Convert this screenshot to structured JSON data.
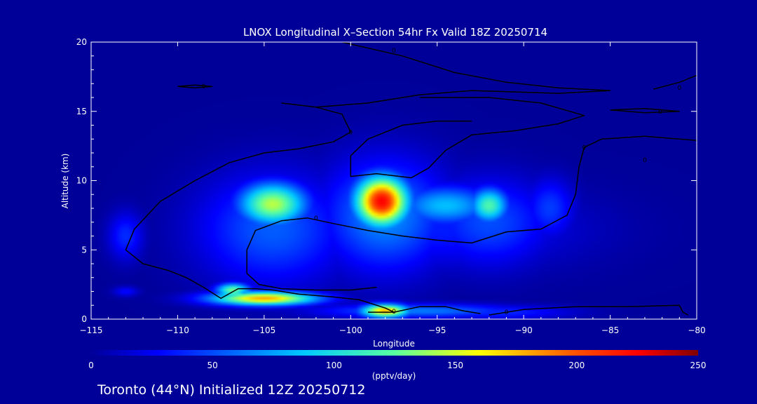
{
  "chart_data": {
    "type": "heatmap",
    "title": "LNOX Longitudinal X–Section 54hr  Fx Valid 18Z 20250714",
    "xlabel": "Longitude",
    "ylabel": "Altitude (km)",
    "xlim": [
      -115,
      -80
    ],
    "ylim": [
      0,
      20
    ],
    "x_ticks": [
      -115,
      -110,
      -105,
      -100,
      -95,
      -90,
      -85,
      -80
    ],
    "x_tick_labels": [
      "−115",
      "−110",
      "−105",
      "−100",
      "−95",
      "−90",
      "−85",
      "−80"
    ],
    "y_ticks": [
      0,
      5,
      10,
      15,
      20
    ],
    "background_color": "#000099",
    "colorbar": {
      "label": "(pptv/day)",
      "range": [
        0,
        250
      ],
      "ticks": [
        0,
        50,
        100,
        150,
        200,
        250
      ],
      "colormap": "jet"
    },
    "field": [
      {
        "lon": -113.0,
        "alt": 6.0,
        "sx": 0.7,
        "sy": 1.2,
        "value": 40
      },
      {
        "lon": -104.5,
        "alt": 8.3,
        "sx": 1.4,
        "sy": 1.1,
        "value": 145
      },
      {
        "lon": -104.5,
        "alt": 6.5,
        "sx": 3.0,
        "sy": 2.8,
        "value": 55
      },
      {
        "lon": -98.2,
        "alt": 8.5,
        "sx": 1.1,
        "sy": 1.3,
        "value": 225
      },
      {
        "lon": -98.0,
        "alt": 7.5,
        "sx": 2.5,
        "sy": 2.8,
        "value": 70
      },
      {
        "lon": -94.5,
        "alt": 8.2,
        "sx": 2.0,
        "sy": 1.0,
        "value": 85
      },
      {
        "lon": -92.0,
        "alt": 8.2,
        "sx": 0.8,
        "sy": 0.9,
        "value": 120
      },
      {
        "lon": -92.0,
        "alt": 7.0,
        "sx": 2.5,
        "sy": 2.2,
        "value": 50
      },
      {
        "lon": -88.5,
        "alt": 8.0,
        "sx": 1.0,
        "sy": 1.5,
        "value": 45
      },
      {
        "lon": -95.0,
        "alt": 6.5,
        "sx": 5.5,
        "sy": 2.0,
        "value": 35
      },
      {
        "lon": -105.0,
        "alt": 1.5,
        "sx": 2.2,
        "sy": 0.35,
        "value": 180
      },
      {
        "lon": -106.8,
        "alt": 2.1,
        "sx": 0.7,
        "sy": 0.35,
        "value": 130
      },
      {
        "lon": -98.0,
        "alt": 0.6,
        "sx": 1.0,
        "sy": 0.35,
        "value": 180
      },
      {
        "lon": -96.0,
        "alt": 0.6,
        "sx": 4.0,
        "sy": 0.35,
        "value": 65
      },
      {
        "lon": -91.5,
        "alt": 0.5,
        "sx": 3.0,
        "sy": 0.35,
        "value": 40
      },
      {
        "lon": -113.0,
        "alt": 2.0,
        "sx": 0.5,
        "sy": 0.25,
        "value": 30
      }
    ],
    "contours": [
      {
        "label": "0",
        "label_at": [
          -97.5,
          19.4
        ],
        "points": [
          [
            -100.5,
            20.0
          ],
          [
            -97,
            19.0
          ],
          [
            -94,
            17.8
          ],
          [
            -91,
            17.1
          ],
          [
            -88,
            16.7
          ],
          [
            -85,
            16.5
          ],
          [
            -88,
            16.3
          ],
          [
            -93,
            16.5
          ],
          [
            -96,
            16.2
          ],
          [
            -99,
            15.6
          ],
          [
            -102,
            15.3
          ],
          [
            -104,
            15.6
          ]
        ]
      },
      {
        "label": "0",
        "label_at": [
          -100,
          13.5
        ],
        "points": [
          [
            -102,
            15.3
          ],
          [
            -100.5,
            14.8
          ],
          [
            -100,
            13.5
          ],
          [
            -101,
            12.8
          ],
          [
            -103,
            12.3
          ],
          [
            -105,
            12.0
          ],
          [
            -107,
            11.3
          ],
          [
            -109,
            10.0
          ],
          [
            -111,
            8.5
          ],
          [
            -112.5,
            6.5
          ],
          [
            -113,
            5.0
          ],
          [
            -112,
            4.0
          ],
          [
            -110.5,
            3.5
          ],
          [
            -109.5,
            3.0
          ],
          [
            -108.5,
            2.3
          ],
          [
            -107.5,
            1.5
          ],
          [
            -106.5,
            2.2
          ],
          [
            -105.5,
            2.2
          ],
          [
            -104.5,
            2.1
          ],
          [
            -103,
            1.8
          ],
          [
            -101,
            1.6
          ],
          [
            -99.5,
            1.4
          ],
          [
            -98,
            0.8
          ],
          [
            -97.5,
            0.5
          ],
          [
            -99,
            0.5
          ]
        ]
      },
      {
        "label": "0",
        "label_at": [
          -97.5,
          0.55
        ],
        "points": [
          [
            -97.5,
            0.5
          ],
          [
            -96,
            0.9
          ],
          [
            -94.5,
            0.9
          ],
          [
            -93.5,
            0.6
          ],
          [
            -92.5,
            0.4
          ]
        ]
      },
      {
        "label": "0",
        "label_at": [
          -83,
          11.5
        ],
        "points": [
          [
            -96,
            16.0
          ],
          [
            -92,
            16.0
          ],
          [
            -89,
            15.6
          ],
          [
            -86.5,
            14.7
          ],
          [
            -88,
            14.1
          ],
          [
            -90.5,
            13.6
          ],
          [
            -93,
            13.3
          ],
          [
            -94.5,
            12.2
          ],
          [
            -95.5,
            10.9
          ],
          [
            -96.5,
            10.2
          ],
          [
            -98.5,
            10.5
          ],
          [
            -100,
            10.3
          ],
          [
            -100,
            11.8
          ],
          [
            -99,
            13.0
          ],
          [
            -97,
            14.0
          ],
          [
            -95,
            14.3
          ],
          [
            -93,
            14.3
          ]
        ]
      },
      {
        "label": "0",
        "label_at": [
          -86.5,
          12.4
        ],
        "points": [
          [
            -80,
            12.9
          ],
          [
            -83,
            13.2
          ],
          [
            -85.5,
            13.0
          ],
          [
            -86.5,
            12.4
          ],
          [
            -86.8,
            11.0
          ],
          [
            -87,
            9.0
          ],
          [
            -87.5,
            7.5
          ],
          [
            -89,
            6.5
          ],
          [
            -91,
            6.3
          ],
          [
            -93,
            5.5
          ]
        ]
      },
      {
        "label": "0",
        "label_at": [
          -102,
          7.3
        ],
        "points": [
          [
            -93,
            5.5
          ],
          [
            -95,
            5.7
          ],
          [
            -97,
            6.0
          ],
          [
            -99,
            6.4
          ],
          [
            -101,
            6.9
          ],
          [
            -102.5,
            7.3
          ],
          [
            -104,
            7.1
          ],
          [
            -105.5,
            6.4
          ],
          [
            -106,
            5.0
          ],
          [
            -106,
            3.3
          ],
          [
            -105.3,
            2.5
          ],
          [
            -104,
            2.2
          ],
          [
            -102,
            2.1
          ],
          [
            -100,
            2.1
          ],
          [
            -98.5,
            2.3
          ]
        ]
      },
      {
        "label": "0",
        "label_at": [
          -91,
          0.5
        ],
        "points": [
          [
            -92,
            0.3
          ],
          [
            -90,
            0.7
          ],
          [
            -87,
            0.9
          ],
          [
            -84,
            0.9
          ],
          [
            -81,
            1.0
          ],
          [
            -80.8,
            0.5
          ],
          [
            -80.5,
            0.3
          ]
        ]
      },
      {
        "label": "0",
        "label_at": [
          -108.5,
          16.8
        ],
        "points": [
          [
            -110,
            16.8
          ],
          [
            -109,
            16.9
          ],
          [
            -108,
            16.8
          ],
          [
            -109,
            16.7
          ],
          [
            -110,
            16.8
          ]
        ]
      },
      {
        "label": "0",
        "label_at": [
          -82.1,
          15.0
        ],
        "points": [
          [
            -85,
            15.1
          ],
          [
            -83,
            15.2
          ],
          [
            -81,
            15.0
          ],
          [
            -83,
            14.9
          ],
          [
            -85,
            15.1
          ]
        ]
      },
      {
        "label": "0",
        "label_at": [
          -81,
          16.7
        ],
        "points": [
          [
            -82.5,
            16.6
          ],
          [
            -81,
            17.1
          ],
          [
            -80,
            17.6
          ]
        ]
      }
    ]
  },
  "footer": {
    "text": "Toronto (44°N) Initialized 12Z 20250712"
  }
}
